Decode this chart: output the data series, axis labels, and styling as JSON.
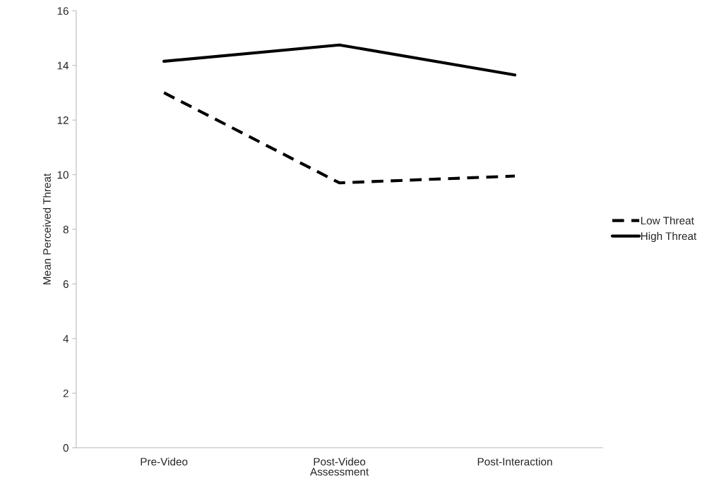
{
  "chart_data": {
    "type": "line",
    "xlabel": "Assessment",
    "ylabel": "Mean Perceived Threat",
    "categories": [
      "Pre-Video",
      "Post-Video",
      "Post-Interaction"
    ],
    "series": [
      {
        "name": "Low Threat",
        "color": "#000000",
        "values": [
          13.0,
          9.7,
          9.95
        ],
        "line_style": "dashed"
      },
      {
        "name": "High Threat",
        "color": "#000000",
        "values": [
          14.15,
          14.75,
          13.65
        ],
        "line_style": "solid"
      }
    ],
    "ylim": [
      0,
      16
    ],
    "yticks": [
      0,
      2,
      4,
      6,
      8,
      10,
      12,
      14,
      16
    ],
    "grid": false,
    "legend": "right",
    "marker": "none"
  }
}
